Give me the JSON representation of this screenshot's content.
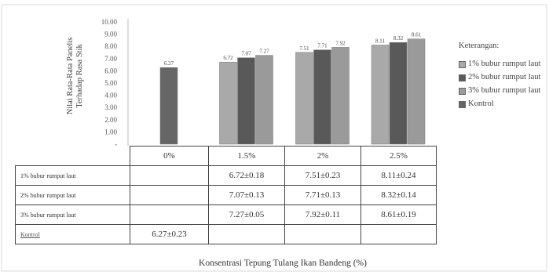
{
  "chart_data": {
    "type": "bar",
    "ylabel": "Nilai Rata-Rata Panelis Terhadap Rasa Stik",
    "xlabel": "Konsentrasi Tepung Tulang Ikan Bandeng  (%)",
    "ylim": [
      0,
      10
    ],
    "yticks": [
      "10.00",
      "9.00",
      "8.00",
      "7.00",
      "6.00",
      "5.00",
      "4.00",
      "3.00",
      "2.00",
      "1.00",
      "-"
    ],
    "categories": [
      "0%",
      "1.5%",
      "2%",
      "2.5%"
    ],
    "series": [
      {
        "name": "1% bubur rumput laut",
        "color": "#a9a9a9",
        "values": [
          null,
          6.72,
          7.51,
          8.11
        ],
        "value_labels": [
          "",
          "6.72",
          "7.51",
          "8.11"
        ]
      },
      {
        "name": "2% bubur rumput laut",
        "color": "#595959",
        "values": [
          null,
          7.07,
          7.71,
          8.32
        ],
        "value_labels": [
          "",
          "7.07",
          "7.71",
          "8.32"
        ]
      },
      {
        "name": "3% bubur rumput laut",
        "color": "#9a9a9a",
        "values": [
          null,
          7.27,
          7.92,
          8.61
        ],
        "value_labels": [
          "",
          "7.27",
          "7.92",
          "8.61"
        ]
      },
      {
        "name": "Kontrol",
        "color": "#666666",
        "values": [
          6.27,
          null,
          null,
          null
        ],
        "value_labels": [
          "6.27",
          "",
          "",
          ""
        ]
      }
    ],
    "legend": {
      "title": "Keterangan:",
      "position": "right"
    },
    "grid": false
  },
  "table": {
    "header": [
      "",
      "0%",
      "1.5%",
      "2%",
      "2.5%"
    ],
    "rows": [
      {
        "label": "1% bubur rumput laut",
        "cells": [
          "",
          "6.72±0.18",
          "7.51±0.23",
          "8.11±0.24"
        ]
      },
      {
        "label": "2% bubur rumput laut",
        "cells": [
          "",
          "7.07±0.13",
          "7.71±0.13",
          "8.32±0.14"
        ]
      },
      {
        "label": "3% bubur rumput laut",
        "cells": [
          "",
          "7.27±0.05",
          "7.92±0.11",
          "8.61±0.19"
        ]
      },
      {
        "label": "Kontrol",
        "cells": [
          "6.27±0.23",
          "",
          "",
          ""
        ]
      }
    ]
  }
}
